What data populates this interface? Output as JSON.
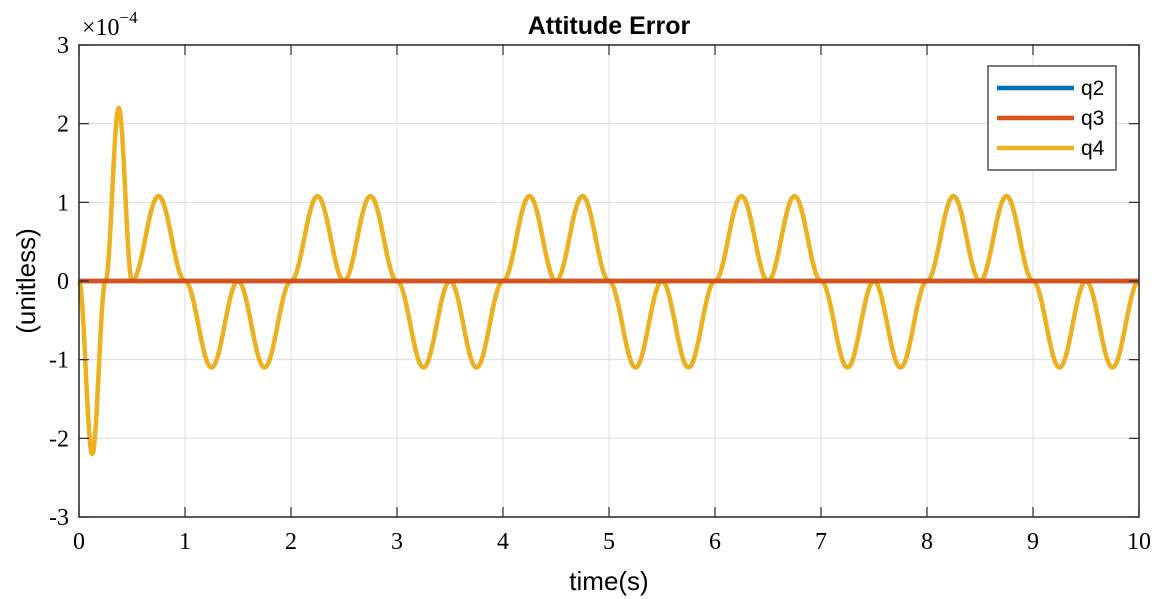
{
  "chart_data": {
    "type": "line",
    "title": "Attitude Error",
    "xlabel": "time(s)",
    "ylabel": "(unitless)",
    "y_multiplier_base": "×10",
    "y_multiplier_exponent": "−4",
    "xlim": [
      0,
      10
    ],
    "ylim": [
      -3,
      3
    ],
    "y_scale_factor": 0.0001,
    "x_ticks": [
      0,
      1,
      2,
      3,
      4,
      5,
      6,
      7,
      8,
      9,
      10
    ],
    "y_ticks": [
      -3,
      -2,
      -1,
      0,
      1,
      2,
      3
    ],
    "x_tick_labels": [
      "0",
      "1",
      "2",
      "3",
      "4",
      "5",
      "6",
      "7",
      "8",
      "9",
      "10"
    ],
    "y_tick_labels": [
      "-3",
      "-2",
      "-1",
      "0",
      "1",
      "2",
      "3"
    ],
    "grid": true,
    "legend_position": "top-right",
    "series": [
      {
        "name": "q2",
        "color": "#0072BD",
        "x": [
          0,
          10
        ],
        "y": [
          0,
          0
        ]
      },
      {
        "name": "q3",
        "color": "#D95319",
        "x": [
          0,
          10
        ],
        "y": [
          0,
          0
        ]
      },
      {
        "name": "q4",
        "color": "#EDB120",
        "x": [
          0,
          0.125,
          0.25,
          0.375,
          0.5,
          0.75,
          1.0,
          1.25,
          1.5,
          1.75,
          2.0,
          2.25,
          2.5,
          2.75,
          3.0,
          3.25,
          3.5,
          3.75,
          4.0,
          4.25,
          4.5,
          4.75,
          5.0,
          5.25,
          5.5,
          5.75,
          6.0,
          6.25,
          6.5,
          6.75,
          7.0,
          7.25,
          7.5,
          7.75,
          8.0,
          8.25,
          8.5,
          8.75,
          9.0,
          9.25,
          9.5,
          9.75,
          10.0
        ],
        "y": [
          0,
          -2.2,
          0,
          2.2,
          0,
          1.08,
          0,
          -1.1,
          0,
          -1.1,
          0,
          1.08,
          0,
          1.08,
          0,
          -1.1,
          0,
          -1.1,
          0,
          1.08,
          0,
          1.08,
          0,
          -1.1,
          0,
          -1.1,
          0,
          1.08,
          0,
          1.08,
          0,
          -1.1,
          0,
          -1.1,
          0,
          1.08,
          0,
          1.08,
          0,
          -1.1,
          0,
          -1.1,
          0
        ]
      }
    ]
  }
}
